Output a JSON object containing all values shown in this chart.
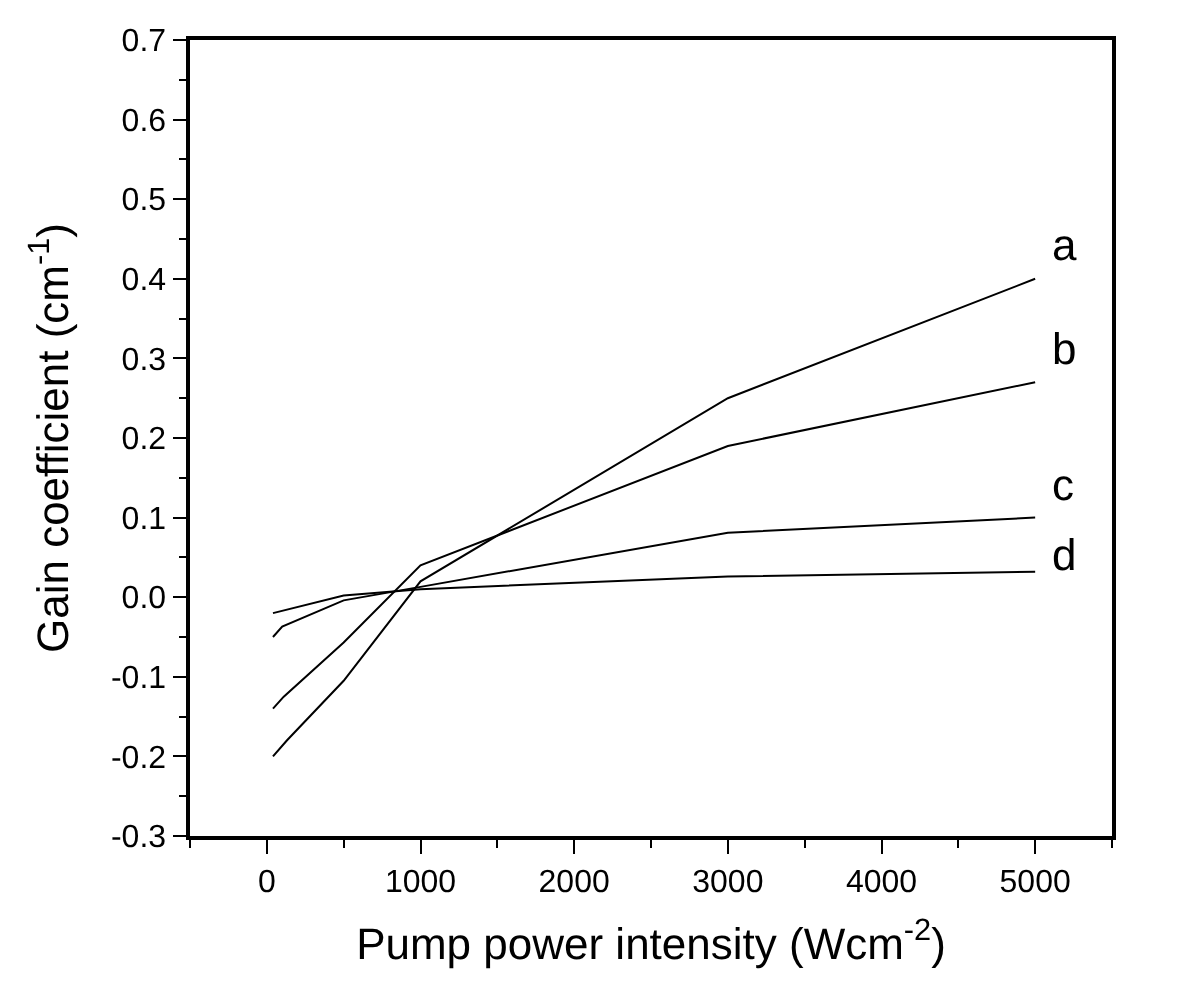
{
  "chart_data": {
    "type": "line",
    "xlabel": "Pump power intensity (Wcm$^{-2}$)",
    "ylabel": "Gain coefficient (cm$^{-1}$)",
    "xlim": [
      -500,
      5500
    ],
    "xticks": [
      0,
      1000,
      2000,
      3000,
      4000,
      5000
    ],
    "ylim": [
      -0.3,
      0.7
    ],
    "yticks": [
      {
        "value": -0.3,
        "label": "-0.3"
      },
      {
        "value": -0.2,
        "label": "-0.2"
      },
      {
        "value": -0.1,
        "label": "-0.1"
      },
      {
        "value": 0,
        "label": "0.0"
      },
      {
        "value": 0.1,
        "label": "0.1"
      },
      {
        "value": 0.2,
        "label": "0.2"
      },
      {
        "value": 0.3,
        "label": "0.3"
      },
      {
        "value": 0.4,
        "label": "0.4"
      },
      {
        "value": 0.5,
        "label": "0.5"
      },
      {
        "value": 0.6,
        "label": "0.6"
      },
      {
        "value": 0.7,
        "label": "0.7"
      }
    ],
    "legend": false,
    "marker": "none",
    "line_style": "solid",
    "series": [
      {
        "name": "a",
        "color": "#000000",
        "x": [
          40,
          130,
          500,
          1000,
          3000,
          5000
        ],
        "values": [
          -0.2,
          -0.18,
          -0.105,
          0.02,
          0.25,
          0.4
        ]
      },
      {
        "name": "b",
        "color": "#000000",
        "x": [
          40,
          110,
          500,
          1000,
          3000,
          5000
        ],
        "values": [
          -0.14,
          -0.125,
          -0.057,
          0.04,
          0.19,
          0.27
        ]
      },
      {
        "name": "c",
        "color": "#000000",
        "x": [
          40,
          100,
          500,
          1000,
          3000,
          5000
        ],
        "values": [
          -0.05,
          -0.037,
          -0.004,
          0.013,
          0.081,
          0.1
        ]
      },
      {
        "name": "d",
        "color": "#000000",
        "x": [
          40,
          500,
          1000,
          3000,
          5000
        ],
        "values": [
          -0.02,
          0.002,
          0.01,
          0.026,
          0.032
        ]
      }
    ]
  }
}
